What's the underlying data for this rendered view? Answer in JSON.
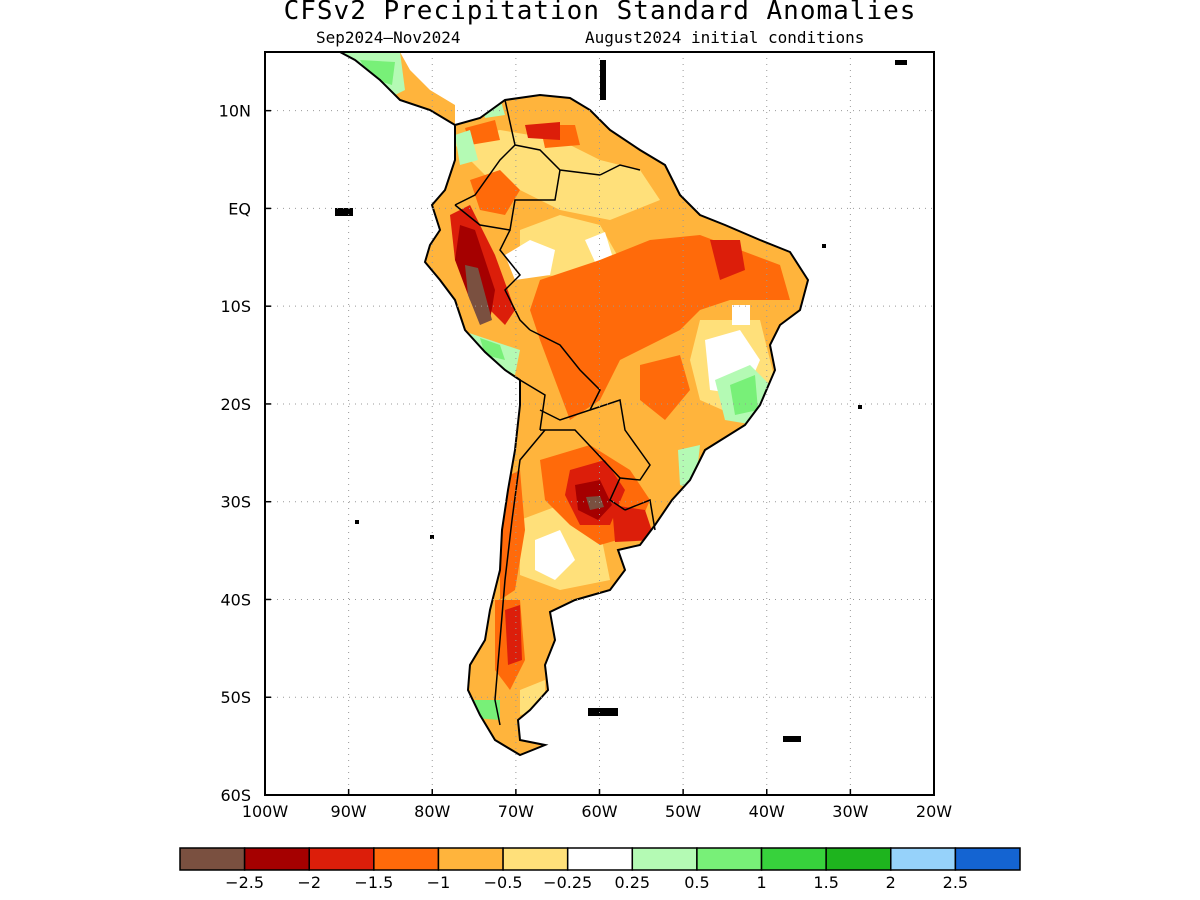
{
  "header": {
    "title": "CFSv2 Precipitation Standard Anomalies",
    "period": "Sep2024–Nov2024",
    "initial_conditions": "August2024 initial conditions"
  },
  "map": {
    "region": "South America",
    "lon_range": [
      -100,
      -20
    ],
    "lat_range": [
      -60,
      16
    ],
    "x_tick_labels": [
      "100W",
      "90W",
      "80W",
      "70W",
      "60W",
      "50W",
      "40W",
      "30W",
      "20W"
    ],
    "x_tick_values": [
      -100,
      -90,
      -80,
      -70,
      -60,
      -50,
      -40,
      -30,
      -20
    ],
    "y_tick_labels": [
      "10N",
      "EQ",
      "10S",
      "20S",
      "30S",
      "40S",
      "50S",
      "60S"
    ],
    "y_tick_values": [
      10,
      0,
      -10,
      -20,
      -30,
      -40,
      -50,
      -60
    ],
    "grid": "dotted"
  },
  "colorbar": {
    "labels": [
      "−2.5",
      "−2",
      "−1.5",
      "−1",
      "−0.5",
      "−0.25",
      "0.25",
      "0.5",
      "1",
      "1.5",
      "2",
      "2.5"
    ],
    "colors": [
      "#7a5040",
      "#a50000",
      "#dc1e0a",
      "#ff6a0a",
      "#ffb43c",
      "#ffe07a",
      "#ffffff",
      "#b4fab4",
      "#78f078",
      "#37d23c",
      "#1eb41e",
      "#96d2fa",
      "#1464d2"
    ]
  },
  "anomaly_colors": {
    "lt_m2_5": "#7a5040",
    "m2": "#a50000",
    "m1_5": "#dc1e0a",
    "m1": "#ff6a0a",
    "m0_5": "#ffb43c",
    "m0_25": "#ffe07a",
    "neutral": "#ffffff",
    "p0_5": "#b4fab4",
    "p1": "#78f078"
  }
}
